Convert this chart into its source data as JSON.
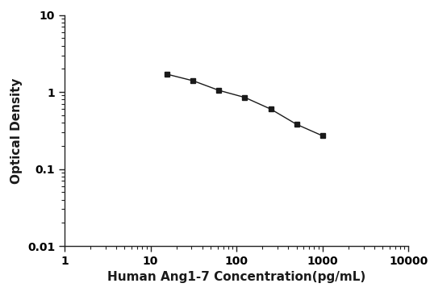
{
  "x_values": [
    15.625,
    31.25,
    62.5,
    125,
    250,
    500,
    1000
  ],
  "y_values": [
    1.7,
    1.4,
    1.05,
    0.85,
    0.6,
    0.38,
    0.27
  ],
  "xlabel": "Human Ang1-7 Concentration(pg/mL)",
  "ylabel": "Optical Density",
  "xlim_log": [
    1,
    10000
  ],
  "ylim_log": [
    0.01,
    10
  ],
  "marker": "s",
  "marker_color": "#1a1a1a",
  "marker_size": 5,
  "line_color": "#555555",
  "line_width": 1.0,
  "background_color": "#ffffff",
  "xlabel_fontsize": 11,
  "ylabel_fontsize": 11,
  "tick_fontsize": 10,
  "tick_fontweight": "bold"
}
